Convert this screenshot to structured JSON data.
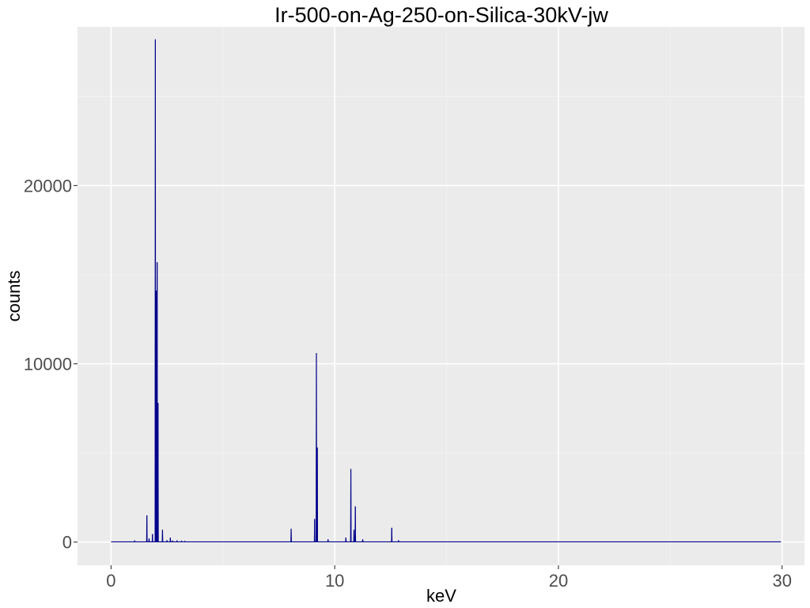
{
  "chart_data": {
    "type": "line",
    "title": "Ir-500-on-Ag-250-on-Silica-30kV-jw",
    "xlabel": "keV",
    "ylabel": "counts",
    "xlim": [
      -1.5,
      31.0
    ],
    "ylim": [
      -1300,
      28900
    ],
    "x_ticks": [
      0,
      10,
      20,
      30
    ],
    "y_ticks": [
      0,
      10000,
      20000
    ],
    "x_minor_ticks": [
      5,
      15,
      25
    ],
    "y_minor_ticks": [
      5000,
      15000,
      25000
    ],
    "grid": true,
    "legend": "none",
    "colors": {
      "panel_background": "#ebebeb",
      "grid_major": "#ffffff",
      "grid_minor": "#f5f5f5",
      "series": "#00008b",
      "tick_text": "#4d4d4d",
      "tick_mark": "#333333"
    },
    "series": [
      {
        "peaks": [
          [
            1.05,
            60
          ],
          [
            1.6,
            1500
          ],
          [
            1.7,
            200
          ],
          [
            1.85,
            450
          ],
          [
            1.98,
            28200
          ],
          [
            2.02,
            14100
          ],
          [
            2.06,
            15700
          ],
          [
            2.1,
            7800
          ],
          [
            2.3,
            700
          ],
          [
            2.5,
            100
          ],
          [
            2.65,
            250
          ],
          [
            2.75,
            80
          ],
          [
            2.95,
            60
          ],
          [
            3.15,
            50
          ],
          [
            3.3,
            40
          ],
          [
            8.05,
            750
          ],
          [
            9.1,
            1300
          ],
          [
            9.18,
            10600
          ],
          [
            9.22,
            5300
          ],
          [
            9.7,
            150
          ],
          [
            10.5,
            250
          ],
          [
            10.72,
            4100
          ],
          [
            10.86,
            700
          ],
          [
            10.92,
            2000
          ],
          [
            11.25,
            150
          ],
          [
            12.55,
            800
          ],
          [
            12.85,
            100
          ]
        ],
        "baseline": 15,
        "x_start": 0.0,
        "x_end": 29.95
      }
    ]
  }
}
